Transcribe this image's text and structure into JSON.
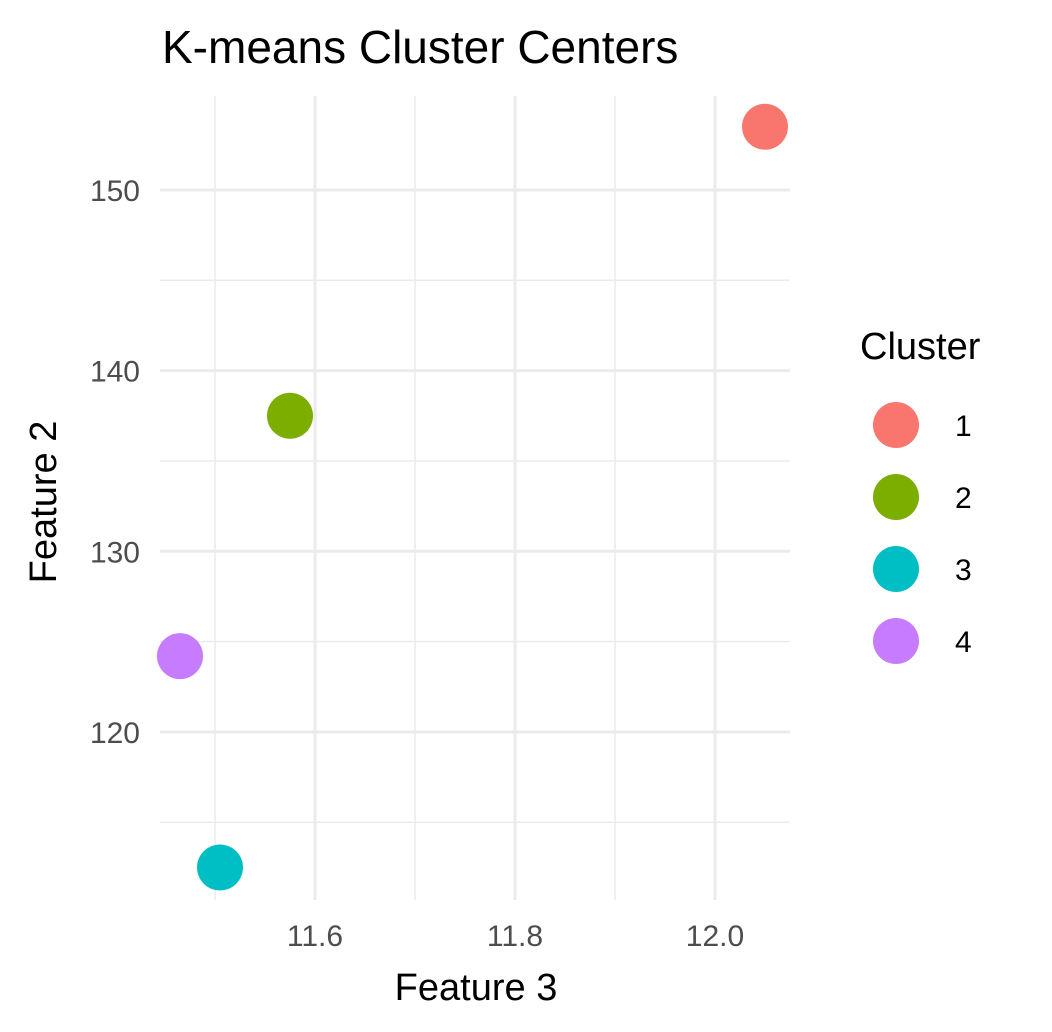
{
  "chart_data": {
    "type": "scatter",
    "title": "K-means Cluster Centers",
    "xlabel": "Feature 3",
    "ylabel": "Feature 2",
    "xlim": [
      11.445,
      12.075
    ],
    "ylim": [
      110.7,
      155.2
    ],
    "xticks": [
      11.6,
      11.8,
      12.0
    ],
    "xtick_labels": [
      "11.6",
      "11.8",
      "12.0"
    ],
    "xminor": [
      11.5,
      11.7,
      11.9
    ],
    "yticks": [
      120,
      130,
      140,
      150
    ],
    "ytick_labels": [
      "120",
      "130",
      "140",
      "150"
    ],
    "yminor": [
      115,
      125,
      135,
      145
    ],
    "grid": true,
    "legend": {
      "title": "Cluster",
      "position": "right"
    },
    "series": [
      {
        "name": "1",
        "color": "#F8766D",
        "x": 12.05,
        "y": 153.5
      },
      {
        "name": "2",
        "color": "#7CAE00",
        "x": 11.575,
        "y": 137.5
      },
      {
        "name": "3",
        "color": "#00BFC4",
        "x": 11.505,
        "y": 112.5
      },
      {
        "name": "4",
        "color": "#C77CFF",
        "x": 11.465,
        "y": 124.2
      }
    ]
  }
}
